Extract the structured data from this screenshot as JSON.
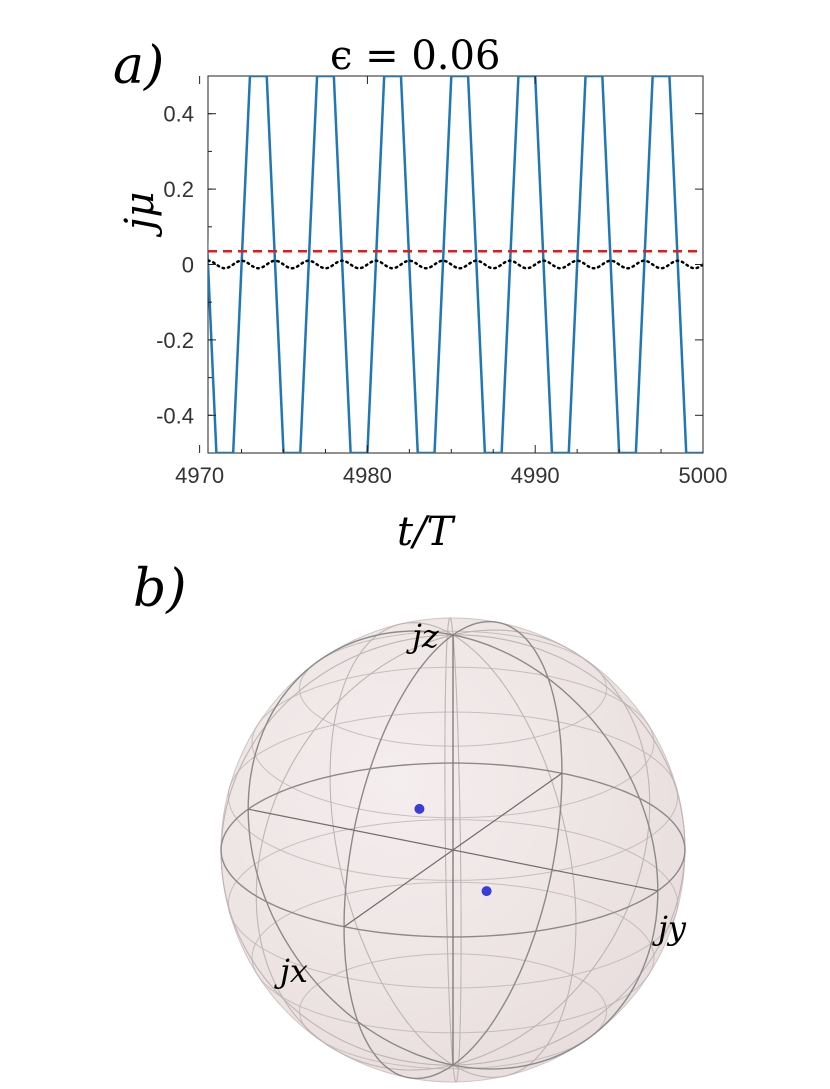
{
  "panel_a": {
    "label": "a)",
    "title": "ϵ = 0.06",
    "xlabel": "t/T",
    "ylabel": "jμ"
  },
  "panel_b": {
    "label": "b)",
    "axis_labels": {
      "z": "jz",
      "x": "jx",
      "y": "jy"
    }
  },
  "colors": {
    "series_blue": "#1f77b4",
    "series_red_dashed": "#e41a1c",
    "series_black_dotted": "#000000",
    "sphere_fill": "#e9dede",
    "sphere_grid": "#8a8a8a",
    "points": "#3b3bd6"
  },
  "chart_data": [
    {
      "type": "line",
      "title": "ϵ = 0.06",
      "xlabel": "t/T",
      "ylabel": "jμ",
      "xlim": [
        4970.5,
        5000
      ],
      "ylim": [
        -0.5,
        0.5
      ],
      "xticks": [
        4970,
        4980,
        4990,
        5000
      ],
      "xtick_labels": [
        "4970",
        "4980",
        "4990",
        "5000"
      ],
      "yticks": [
        -0.4,
        -0.2,
        0,
        0.2,
        0.4
      ],
      "ytick_labels": [
        "-0.4",
        "-0.2",
        "0",
        "0.2",
        "0.4"
      ],
      "series": [
        {
          "style": "solid",
          "color": "#1f77b4",
          "x": [
            4970,
            4972,
            4974,
            4976,
            4978,
            4980,
            4982,
            4984,
            4986,
            4988,
            4990,
            4992,
            4994,
            4996,
            4998,
            5000
          ],
          "y": [
            0.5,
            -0.5,
            0.5,
            -0.5,
            0.5,
            -0.5,
            0.5,
            -0.5,
            0.5,
            -0.5,
            0.5,
            -0.5,
            0.5,
            -0.5,
            0.5,
            -0.5
          ],
          "x2": [
            4971,
            4973,
            4975,
            4977,
            4979,
            4981,
            4983,
            4985,
            4987,
            4989,
            4991,
            4993,
            4995,
            4997,
            4999
          ],
          "y2": [
            -0.5,
            0.5,
            -0.5,
            0.5,
            -0.5,
            0.5,
            -0.5,
            0.5,
            -0.5,
            0.5,
            -0.5,
            0.5,
            -0.5,
            0.5,
            -0.5
          ]
        },
        {
          "style": "dashed",
          "color": "#e41a1c",
          "constant": 0.035
        },
        {
          "style": "dotted",
          "color": "#000000",
          "mean": 0.0,
          "amplitude": 0.01,
          "period": 2
        }
      ]
    },
    {
      "type": "scatter",
      "points": [
        {
          "x": 0.35,
          "y": 0.35,
          "z": 0.0
        },
        {
          "x": -0.35,
          "y": -0.35,
          "z": 0.0
        }
      ]
    }
  ]
}
